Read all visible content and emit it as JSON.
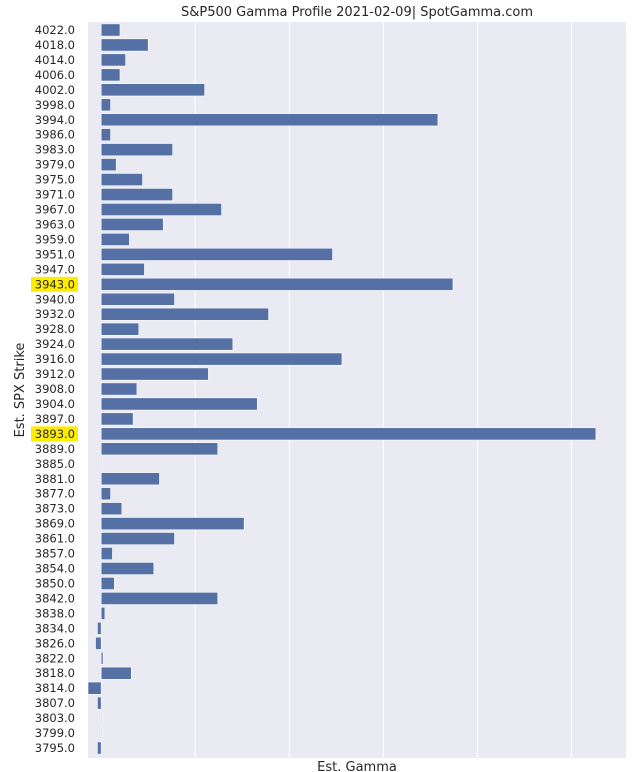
{
  "chart_data": {
    "type": "bar",
    "orientation": "horizontal",
    "title": "S&P500 Gamma Profile 2021-02-09| SpotGamma.com",
    "xlabel": "Est. Gamma",
    "ylabel": "Est. SPX Strike",
    "xlim": [
      -7,
      279
    ],
    "grid": true,
    "bar_color": "#5470a4",
    "background_color": "#eaeaf2",
    "highlight_color": "#ffed00",
    "highlighted_categories": [
      "3943.0",
      "3893.0"
    ],
    "categories": [
      "4022.0",
      "4018.0",
      "4014.0",
      "4006.0",
      "4002.0",
      "3998.0",
      "3994.0",
      "3986.0",
      "3983.0",
      "3979.0",
      "3975.0",
      "3971.0",
      "3967.0",
      "3963.0",
      "3959.0",
      "3951.0",
      "3947.0",
      "3943.0",
      "3940.0",
      "3932.0",
      "3928.0",
      "3924.0",
      "3916.0",
      "3912.0",
      "3908.0",
      "3904.0",
      "3897.0",
      "3893.0",
      "3889.0",
      "3885.0",
      "3881.0",
      "3877.0",
      "3873.0",
      "3869.0",
      "3861.0",
      "3857.0",
      "3854.0",
      "3850.0",
      "3842.0",
      "3838.0",
      "3834.0",
      "3826.0",
      "3822.0",
      "3818.0",
      "3814.0",
      "3807.0",
      "3803.0",
      "3799.0",
      "3795.0"
    ],
    "values": [
      10,
      25,
      13,
      10,
      55,
      5,
      179,
      5,
      38,
      8,
      22,
      38,
      64,
      33,
      15,
      123,
      23,
      187,
      39,
      89,
      20,
      70,
      128,
      57,
      19,
      83,
      17,
      263,
      62,
      0,
      31,
      5,
      11,
      76,
      39,
      6,
      28,
      7,
      62,
      2,
      -2,
      -3,
      1,
      16,
      -7,
      -2,
      0,
      0,
      -2
    ]
  }
}
